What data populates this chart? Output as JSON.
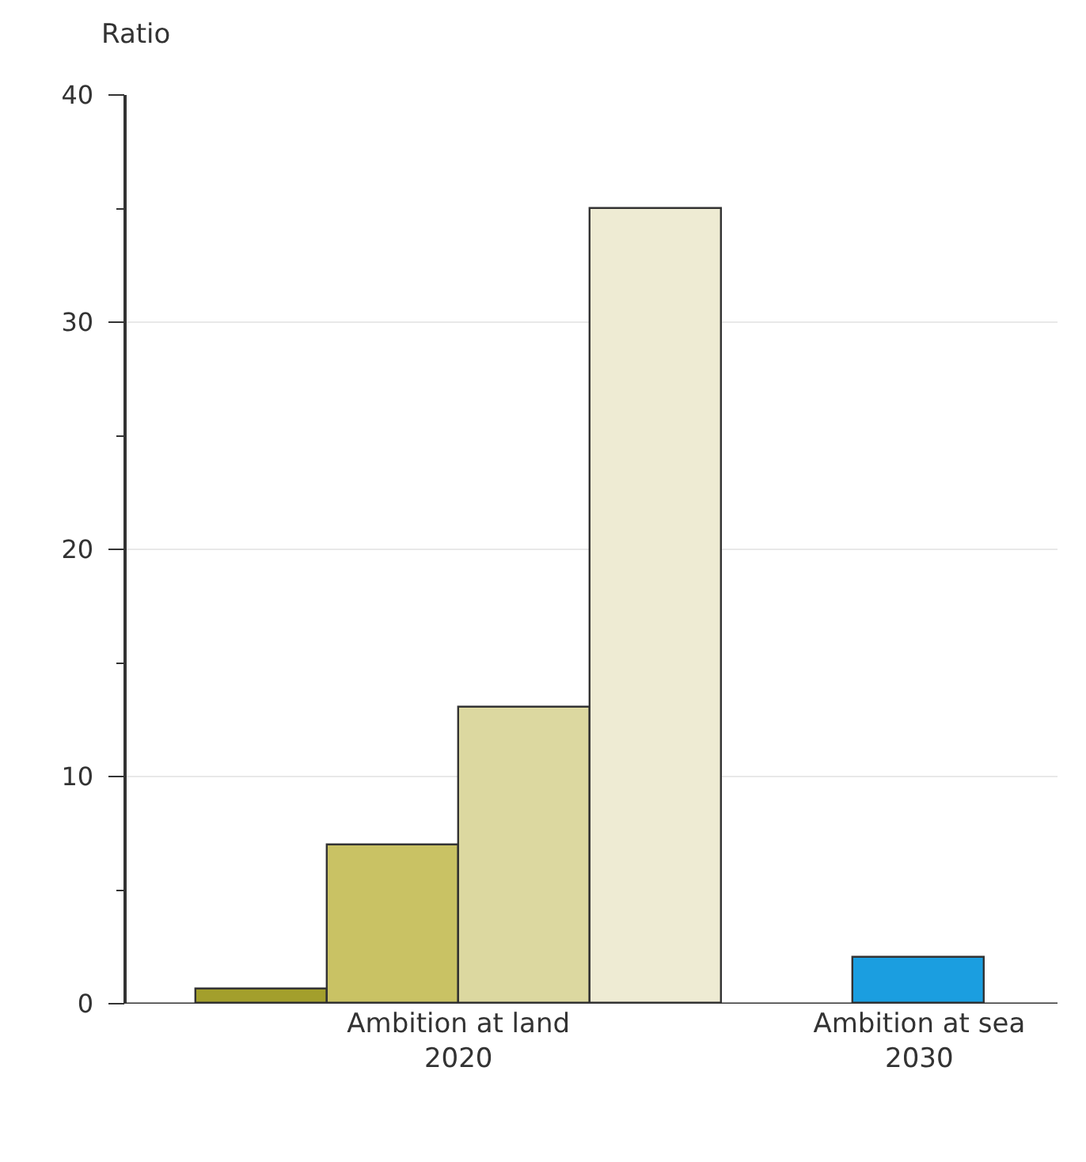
{
  "chart_data": {
    "type": "bar",
    "ylabel": "Ratio",
    "categories": [
      "Ambition at land\n2020",
      "Ambition at sea\n2030"
    ],
    "series": [
      {
        "color": "#a39f2c",
        "values": [
          0.6,
          null
        ]
      },
      {
        "color": "#c9c264",
        "values": [
          7,
          null
        ]
      },
      {
        "color": "#dcd8a0",
        "values": [
          13,
          null
        ]
      },
      {
        "color": "#eeebd3",
        "values": [
          35,
          null
        ]
      },
      {
        "color": "#1b9ee0",
        "values": [
          null,
          2
        ]
      }
    ],
    "ylim": [
      0,
      40
    ],
    "yticks": [
      0,
      {
        "value": 5,
        "label": null
      },
      10,
      {
        "value": 15,
        "label": null
      },
      20,
      {
        "value": 25,
        "label": null
      },
      30,
      {
        "value": 35,
        "label": null
      },
      40
    ],
    "grid": "y"
  }
}
